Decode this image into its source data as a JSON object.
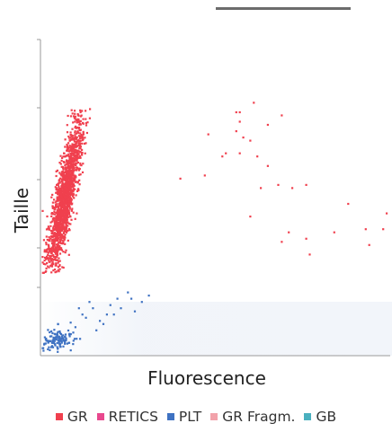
{
  "chart_data": {
    "type": "scatter",
    "title": "",
    "xlabel": "Fluorescence",
    "ylabel": "Taille",
    "xlim": [
      0,
      100
    ],
    "ylim": [
      0,
      100
    ],
    "grid": false,
    "legend_position": "bottom",
    "legend": [
      {
        "name": "GR",
        "color": "#f0404e"
      },
      {
        "name": "RETICS",
        "color": "#e8488e"
      },
      {
        "name": "PLT",
        "color": "#3f72c2"
      },
      {
        "name": "GR Fragm.",
        "color": "#f2a2aa"
      },
      {
        "name": "GB",
        "color": "#4ab0bf"
      }
    ],
    "series": [
      {
        "name": "GR",
        "color": "#f0404e",
        "cluster": {
          "cx": 7,
          "cy": 50,
          "spread_x": 1.4,
          "spread_y": 12,
          "slope": 6,
          "count": 1600,
          "y_range": [
            26,
            78
          ]
        },
        "points": [
          [
            40,
            56
          ],
          [
            56,
            77
          ],
          [
            57,
            77
          ],
          [
            48,
            70
          ],
          [
            57,
            74
          ],
          [
            65,
            73
          ],
          [
            61,
            80
          ],
          [
            60,
            68
          ],
          [
            53,
            64
          ],
          [
            57,
            64
          ],
          [
            69,
            76
          ],
          [
            68,
            54
          ],
          [
            63,
            53
          ],
          [
            76,
            54
          ],
          [
            72,
            53
          ],
          [
            88,
            48
          ],
          [
            98,
            40
          ],
          [
            93,
            40
          ],
          [
            99,
            45
          ],
          [
            84,
            39
          ],
          [
            76,
            37
          ],
          [
            77,
            32
          ],
          [
            69,
            36
          ],
          [
            71,
            39
          ],
          [
            94,
            35
          ],
          [
            60,
            44
          ],
          [
            65,
            60
          ],
          [
            52,
            63
          ],
          [
            47,
            57
          ],
          [
            56,
            71
          ],
          [
            58,
            69
          ],
          [
            62,
            63
          ]
        ]
      },
      {
        "name": "PLT",
        "color": "#3f72c2",
        "cluster": {
          "cx": 5,
          "cy": 5,
          "spread_x": 2.5,
          "spread_y": 1.8,
          "slope": 0.6,
          "count": 120,
          "x_range": [
            0.5,
            12
          ]
        },
        "points": [
          [
            13,
            12
          ],
          [
            15,
            15
          ],
          [
            20,
            16
          ],
          [
            22,
            18
          ],
          [
            25,
            20
          ],
          [
            29,
            17
          ],
          [
            31,
            19
          ],
          [
            27,
            14
          ],
          [
            18,
            10
          ],
          [
            16,
            8
          ],
          [
            19,
            13
          ],
          [
            10,
            9
          ],
          [
            12,
            13
          ],
          [
            14,
            17
          ],
          [
            23,
            15
          ],
          [
            26,
            18
          ],
          [
            11,
            15
          ],
          [
            5,
            10
          ],
          [
            17,
            11
          ],
          [
            21,
            13
          ]
        ]
      }
    ]
  }
}
